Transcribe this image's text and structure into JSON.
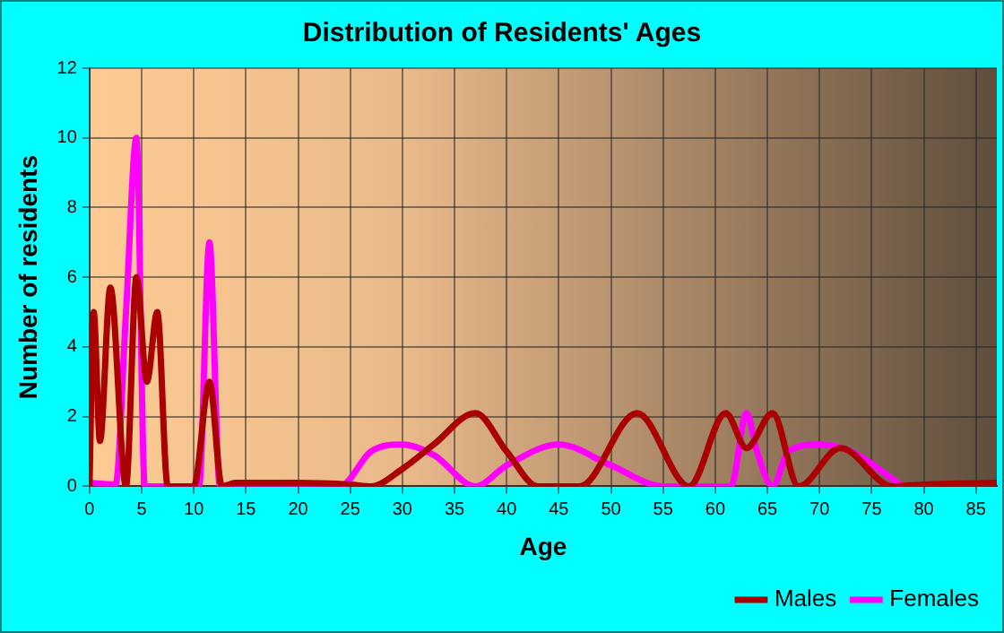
{
  "chart_data": {
    "type": "line",
    "title": "Distribution of Residents' Ages",
    "xlabel": "Age",
    "ylabel": "Number of residents",
    "xlim": [
      0,
      87
    ],
    "xticks": [
      0,
      5,
      10,
      15,
      20,
      25,
      30,
      35,
      40,
      45,
      50,
      55,
      60,
      65,
      70,
      75,
      80,
      85
    ],
    "ylim": [
      0,
      12
    ],
    "yticks": [
      0,
      2,
      4,
      6,
      8,
      10,
      12
    ],
    "grid": true,
    "legend": "bottom right",
    "marker": "none",
    "series": [
      {
        "name": "Males",
        "color": "#aa0000",
        "x": [
          0,
          0.4,
          1,
          2,
          3.5,
          4.5,
          5.5,
          6.5,
          7.5,
          10,
          11.5,
          12.7,
          14,
          20,
          25,
          27,
          30,
          33,
          37,
          40,
          43,
          47,
          52.5,
          57.5,
          61,
          63,
          65.5,
          68,
          72,
          77,
          80,
          87
        ],
        "values": [
          0,
          5,
          1.3,
          5.7,
          0,
          6,
          3,
          5,
          0,
          0,
          3,
          0,
          0.1,
          0.1,
          0.05,
          0,
          0.5,
          1.2,
          2.1,
          1,
          0,
          0,
          2.1,
          0,
          2.1,
          1.1,
          2.1,
          0,
          1.1,
          0,
          0.05,
          0.1
        ]
      },
      {
        "name": "Females",
        "color": "#ff00ff",
        "x": [
          0,
          2.5,
          3.5,
          4.5,
          5.3,
          7,
          10.5,
          11.5,
          12.5,
          24,
          27,
          30,
          33,
          37,
          40,
          45,
          50,
          55,
          61.5,
          63,
          64,
          65.5,
          67,
          70,
          73,
          78
        ],
        "values": [
          0.1,
          0.05,
          5,
          10,
          0,
          0,
          0,
          7,
          0,
          0,
          1,
          1.2,
          0.9,
          0,
          0.6,
          1.2,
          0.6,
          0,
          0,
          2.1,
          1,
          0,
          1,
          1.2,
          1,
          0
        ]
      }
    ]
  }
}
